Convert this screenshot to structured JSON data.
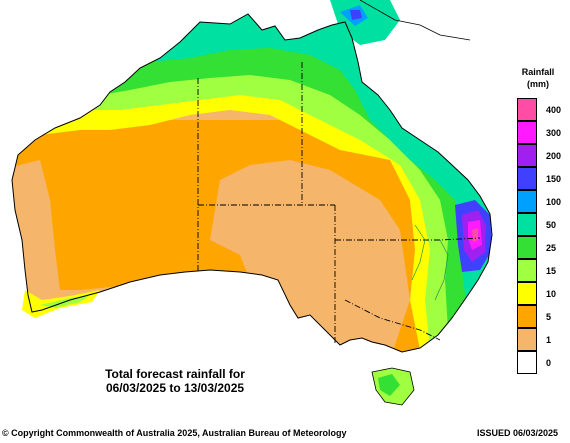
{
  "legend": {
    "title": "Rainfall\n(mm)",
    "classes": [
      {
        "label": "400",
        "color": "#ff4da6"
      },
      {
        "label": "300",
        "color": "#ff1aff"
      },
      {
        "label": "200",
        "color": "#a020f0"
      },
      {
        "label": "150",
        "color": "#4040ff"
      },
      {
        "label": "100",
        "color": "#00a0ff"
      },
      {
        "label": "50",
        "color": "#00e0a0"
      },
      {
        "label": "25",
        "color": "#33e033"
      },
      {
        "label": "15",
        "color": "#a0ff40"
      },
      {
        "label": "10",
        "color": "#ffff00"
      },
      {
        "label": "5",
        "color": "#ffa500"
      },
      {
        "label": "1",
        "color": "#f5b56a"
      },
      {
        "label": "0",
        "color": "#ffffff"
      }
    ]
  },
  "caption": {
    "line1": "Total forecast rainfall for",
    "line2": "06/03/2025 to 13/03/2025"
  },
  "footer": {
    "copyright": "© Copyright Commonwealth of Australia 2025, Australian Bureau of Meteorology",
    "issued": "ISSUED 06/03/2025"
  }
}
